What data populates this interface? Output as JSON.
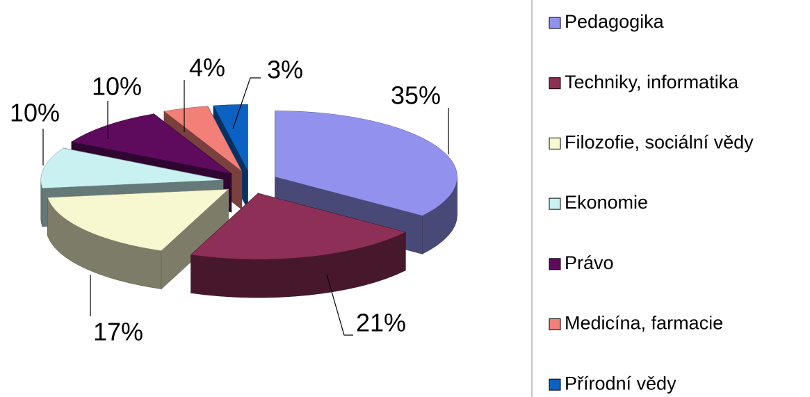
{
  "chart_data": {
    "type": "pie",
    "categories": [
      "Pedagogika",
      "Techniky, informatika",
      "Filozofie, sociální vědy",
      "Ekonomie",
      "Právo",
      "Medicína, farmacie",
      "Přírodní vědy"
    ],
    "values": [
      35,
      21,
      17,
      10,
      10,
      4,
      3
    ],
    "value_labels": [
      "35%",
      "21%",
      "17%",
      "10%",
      "10%",
      "4%",
      "3%"
    ],
    "colors": [
      "#9292ee",
      "#8d2f57",
      "#f8f8d0",
      "#c9f1f1",
      "#5e0b5e",
      "#f28079",
      "#0c62c2"
    ],
    "legend": "right"
  }
}
